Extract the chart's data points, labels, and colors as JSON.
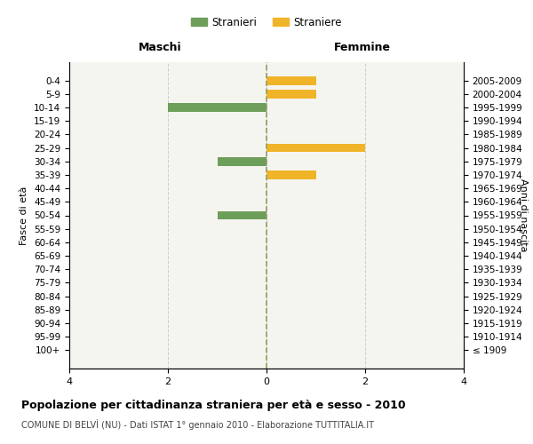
{
  "age_groups": [
    "100+",
    "95-99",
    "90-94",
    "85-89",
    "80-84",
    "75-79",
    "70-74",
    "65-69",
    "60-64",
    "55-59",
    "50-54",
    "45-49",
    "40-44",
    "35-39",
    "30-34",
    "25-29",
    "20-24",
    "15-19",
    "10-14",
    "5-9",
    "0-4"
  ],
  "birth_years": [
    "≤ 1909",
    "1910-1914",
    "1915-1919",
    "1920-1924",
    "1925-1929",
    "1930-1934",
    "1935-1939",
    "1940-1944",
    "1945-1949",
    "1950-1954",
    "1955-1959",
    "1960-1964",
    "1965-1969",
    "1970-1974",
    "1975-1979",
    "1980-1984",
    "1985-1989",
    "1990-1994",
    "1995-1999",
    "2000-2004",
    "2005-2009"
  ],
  "males": [
    0,
    0,
    0,
    0,
    0,
    0,
    0,
    0,
    0,
    0,
    1,
    0,
    0,
    0,
    1,
    0,
    0,
    0,
    2,
    0,
    0
  ],
  "females": [
    0,
    0,
    0,
    0,
    0,
    0,
    0,
    0,
    0,
    0,
    0,
    0,
    0,
    1,
    0,
    2,
    0,
    0,
    0,
    1,
    1
  ],
  "male_color": "#6d9e5a",
  "female_color": "#f0b429",
  "xlim": 4,
  "title": "Popolazione per cittadinanza straniera per età e sesso - 2010",
  "subtitle": "COMUNE DI BELVÌ (NU) - Dati ISTAT 1° gennaio 2010 - Elaborazione TUTTITALIA.IT",
  "ylabel_left": "Fasce di età",
  "ylabel_right": "Anni di nascita",
  "xlabel_left": "Maschi",
  "xlabel_right": "Femmine",
  "legend_male": "Stranieri",
  "legend_female": "Straniere",
  "bg_color": "#f5f5f0",
  "grid_color": "#cccccc",
  "center_line_color": "#999966"
}
